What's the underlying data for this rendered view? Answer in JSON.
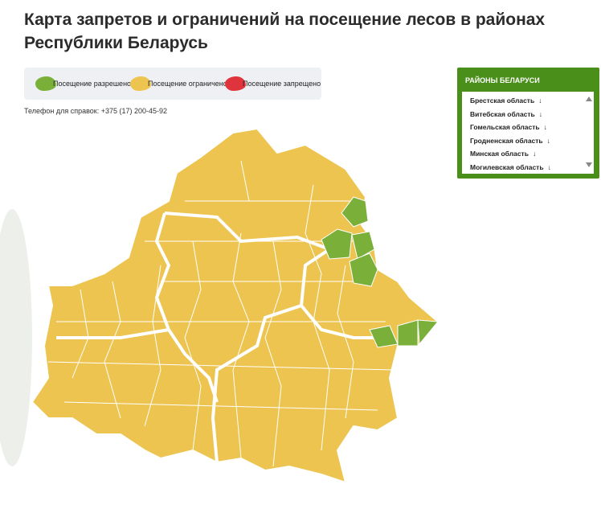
{
  "header": {
    "title": "Карта запретов и ограничений на посещение лесов в районах Республики Беларусь"
  },
  "legend": {
    "items": [
      {
        "label": "Посещение разрешено",
        "color": "#7ab03a"
      },
      {
        "label": "Посещение ограничено",
        "color": "#ecc44f"
      },
      {
        "label": "Посещение запрещено",
        "color": "#e0343c"
      }
    ]
  },
  "phone": "Телефон для справок: +375 (17) 200-45-92",
  "sidebar": {
    "title": "РАЙОНЫ БЕЛАРУСИ",
    "regions": [
      "Брестская область",
      "Витебская область",
      "Гомельская область",
      "Гродненская область",
      "Минская область",
      "Могилевская область"
    ]
  }
}
